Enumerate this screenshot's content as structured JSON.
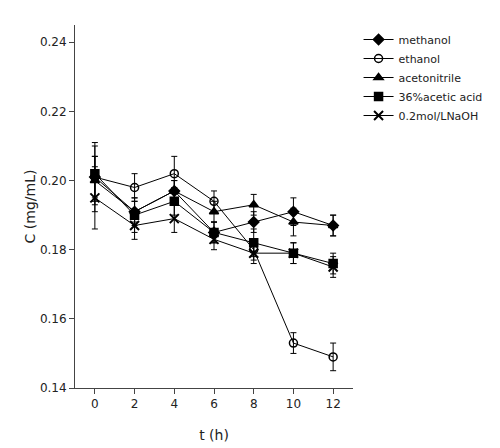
{
  "chart_data": {
    "type": "line",
    "xlabel": "t (h)",
    "ylabel": "C (mg/mL)",
    "x": [
      0,
      2,
      4,
      6,
      8,
      10,
      12
    ],
    "series": [
      {
        "name": "methanol",
        "color": "#000000",
        "marker": "diamond",
        "line_style": "solid",
        "values": [
          0.201,
          0.191,
          0.197,
          0.185,
          0.188,
          0.191,
          0.187
        ],
        "errors": [
          0.01,
          0.004,
          0.003,
          0.003,
          0.003,
          0.004,
          0.003
        ]
      },
      {
        "name": "ethanol",
        "color": "#000000",
        "marker": "circle-open",
        "line_style": "solid",
        "values": [
          0.201,
          0.198,
          0.202,
          0.194,
          0.18,
          0.153,
          0.149
        ],
        "errors": [
          0.006,
          0.004,
          0.005,
          0.003,
          0.003,
          0.003,
          0.004
        ]
      },
      {
        "name": "acetonitrile",
        "color": "#000000",
        "marker": "triangle-up",
        "line_style": "solid",
        "values": [
          0.2,
          0.191,
          0.197,
          0.191,
          0.193,
          0.188,
          0.187
        ],
        "errors": [
          0.007,
          0.003,
          0.003,
          0.003,
          0.003,
          0.004,
          0.003
        ]
      },
      {
        "name": "36%acetic acid",
        "color": "#000000",
        "marker": "square",
        "line_style": "solid",
        "values": [
          0.202,
          0.19,
          0.194,
          0.185,
          0.182,
          0.179,
          0.176
        ],
        "errors": [
          0.008,
          0.005,
          0.004,
          0.003,
          0.004,
          0.003,
          0.003
        ]
      },
      {
        "name": "0.2mol/LNaOH",
        "color": "#000000",
        "marker": "x",
        "line_style": "solid",
        "values": [
          0.195,
          0.187,
          0.189,
          0.183,
          0.179,
          0.179,
          0.175
        ],
        "errors": [
          0.009,
          0.004,
          0.004,
          0.003,
          0.003,
          0.003,
          0.003
        ]
      }
    ],
    "xlim": [
      -1,
      13
    ],
    "xticks": [
      0,
      2,
      4,
      6,
      8,
      10,
      12
    ],
    "ylim": [
      0.14,
      0.245
    ],
    "yticks": [
      0.14,
      0.16,
      0.18,
      {
        "value": 0.2,
        "label": "0.20"
      },
      0.22,
      0.24
    ],
    "grid": false,
    "legend": "right"
  }
}
